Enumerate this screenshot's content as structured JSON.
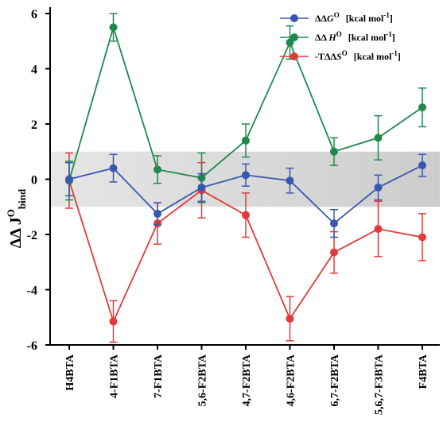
{
  "chart_data": {
    "type": "line",
    "categories": [
      "H4BTA",
      "4-F1BTA",
      "7-F1BTA",
      "5,6-F2BTA",
      "4,7-F2BTA",
      "4,6-F2BTA",
      "6,7-F2BTA",
      "5,6,7-F3BTA",
      "F4BTA"
    ],
    "ylabel": "ΔΔ J°bind",
    "ylim": [
      -6,
      6
    ],
    "yticks": [
      -6,
      -4,
      -2,
      0,
      2,
      4,
      6
    ],
    "shaded_band": [
      -1,
      1
    ],
    "grid": false,
    "legend_position": "top-right",
    "series": [
      {
        "name": "ΔΔG° [kcal mol-1]",
        "color": "#3a57b0",
        "values": [
          0.0,
          0.4,
          -1.25,
          -0.3,
          0.15,
          -0.05,
          -1.6,
          -0.3,
          0.5
        ],
        "errors": [
          0.6,
          0.5,
          0.4,
          0.5,
          0.4,
          0.45,
          0.5,
          0.45,
          0.4
        ]
      },
      {
        "name": "ΔΔH° [kcal mol-1]",
        "color": "#1f8a4c",
        "values": [
          -0.05,
          5.5,
          0.35,
          0.05,
          1.4,
          4.95,
          1.0,
          1.5,
          2.6
        ],
        "errors": [
          0.7,
          0.5,
          0.5,
          0.9,
          0.6,
          0.6,
          0.5,
          0.8,
          0.7
        ]
      },
      {
        "name": "-TΔΔS° [kcal mol-1]",
        "color": "#e23a3a",
        "values": [
          -0.05,
          -5.15,
          -1.6,
          -0.4,
          -1.3,
          -5.05,
          -2.65,
          -1.8,
          -2.1
        ],
        "errors": [
          1.0,
          0.75,
          0.75,
          1.0,
          0.8,
          0.8,
          0.75,
          1.0,
          0.85
        ]
      }
    ],
    "legend": {
      "items": [
        {
          "main": "ΔΔ",
          "var": "G",
          "sup": "O",
          "unit": "[kcal mol",
          "unit_sup": "-1",
          "close": "]"
        },
        {
          "main": "ΔΔ ",
          "var": "H",
          "sup": "O",
          "unit": "[kcal mol",
          "unit_sup": "-1",
          "close": "]"
        },
        {
          "main": "-TΔΔ",
          "var": "S",
          "sup": "O",
          "unit": "[kcal mol",
          "unit_sup": "-1",
          "close": "]"
        }
      ]
    },
    "ylabel_parts": {
      "main": "ΔΔ J",
      "sup": "O",
      "sub": "bind"
    }
  }
}
